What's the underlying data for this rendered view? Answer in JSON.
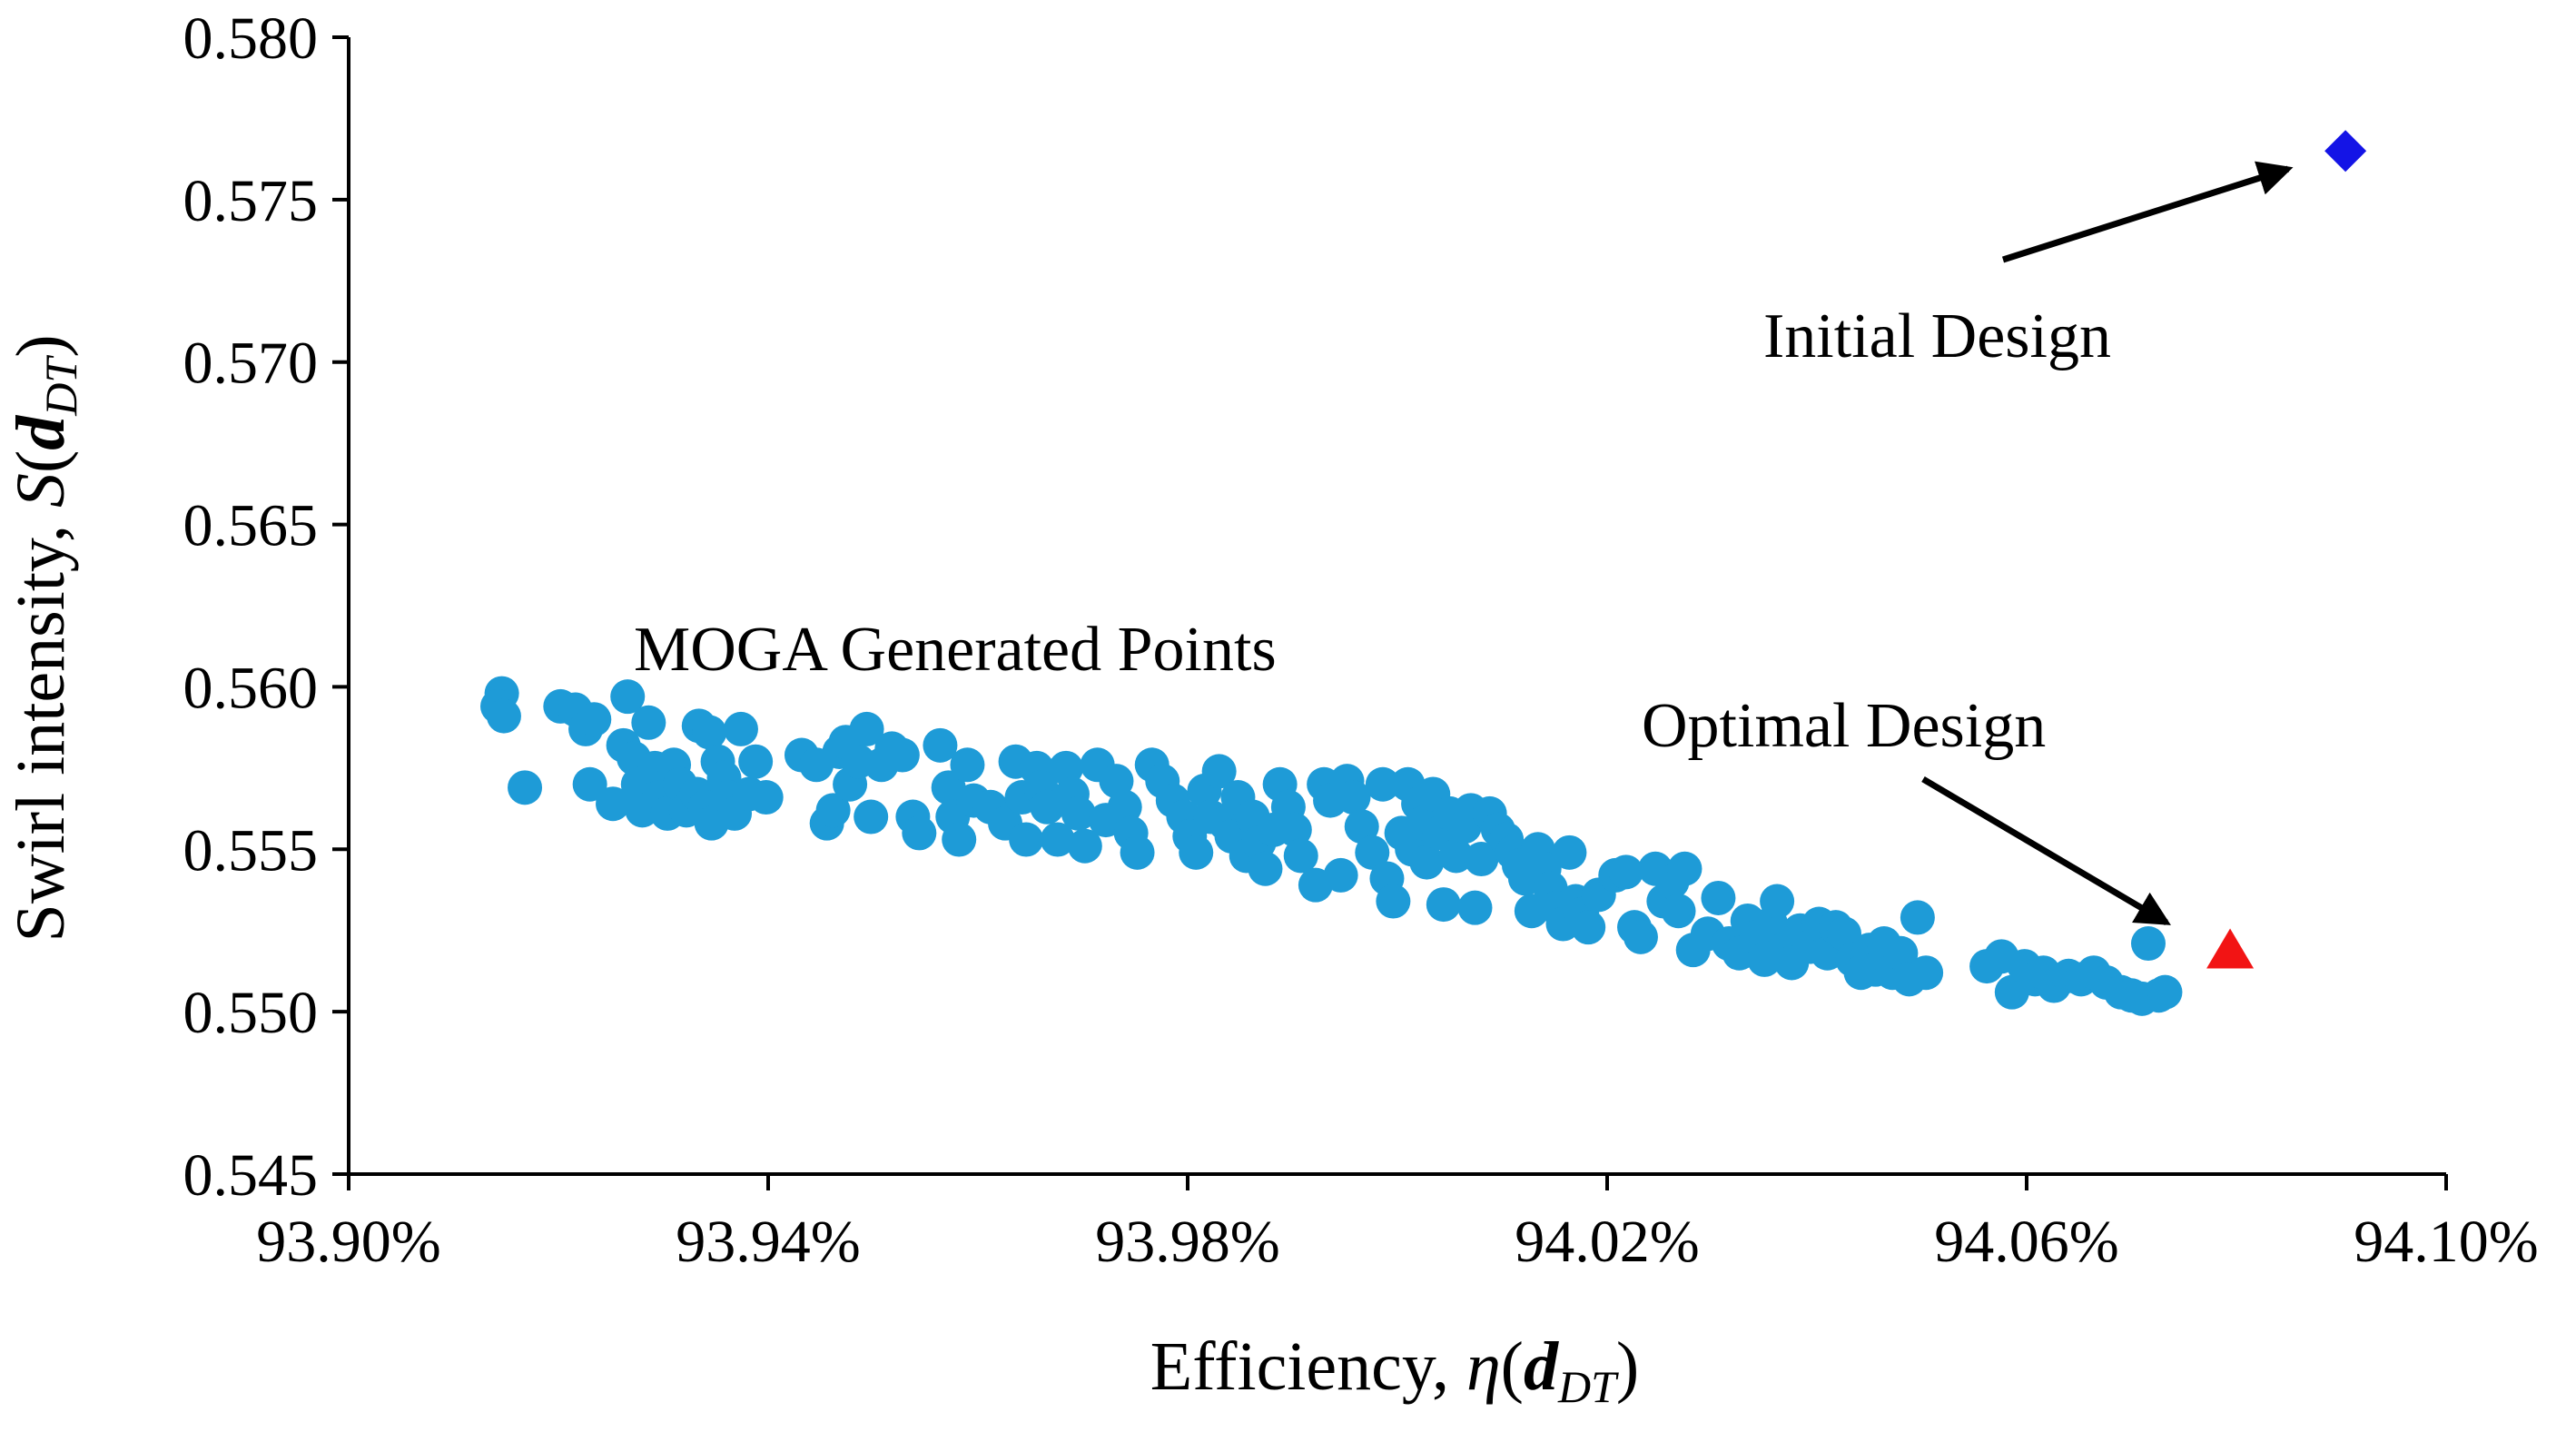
{
  "chart_data": {
    "type": "scatter",
    "title": "",
    "xlabel": {
      "prefix": "Efficiency, ",
      "symbol": "η",
      "open": "(",
      "vector": "d",
      "sub": "DT",
      "close": ")"
    },
    "ylabel": {
      "prefix": "Swirl intensity, ",
      "symbol": "S",
      "open": "(",
      "vector": "d",
      "sub": "DT",
      "close": ")"
    },
    "xlim": [
      93.9,
      94.1
    ],
    "ylim": [
      0.545,
      0.58
    ],
    "x_ticks": [
      93.9,
      93.94,
      93.98,
      94.02,
      94.06,
      94.1
    ],
    "x_tick_labels": [
      "93.90%",
      "93.94%",
      "93.98%",
      "94.02%",
      "94.06%",
      "94.10%"
    ],
    "y_ticks": [
      0.545,
      0.55,
      0.555,
      0.56,
      0.565,
      0.57,
      0.575,
      0.58
    ],
    "y_tick_labels": [
      "0.545",
      "0.550",
      "0.555",
      "0.560",
      "0.565",
      "0.570",
      "0.575",
      "0.580"
    ],
    "grid": false,
    "series": [
      {
        "name": "MOGA Generated Points",
        "marker": "circle",
        "color": "#1E9BD7",
        "points": [
          [
            93.9146,
            0.5598
          ],
          [
            93.9142,
            0.5594
          ],
          [
            93.9148,
            0.5591
          ],
          [
            93.9168,
            0.5569
          ],
          [
            93.9202,
            0.5594
          ],
          [
            93.9216,
            0.5593
          ],
          [
            93.9226,
            0.5587
          ],
          [
            93.9234,
            0.559
          ],
          [
            93.923,
            0.557
          ],
          [
            93.9252,
            0.5564
          ],
          [
            93.9266,
            0.5597
          ],
          [
            93.9262,
            0.5582
          ],
          [
            93.9272,
            0.5578
          ],
          [
            93.9276,
            0.557
          ],
          [
            93.928,
            0.5562
          ],
          [
            93.9286,
            0.5589
          ],
          [
            93.9292,
            0.5575
          ],
          [
            93.9296,
            0.5566
          ],
          [
            93.9304,
            0.5561
          ],
          [
            93.931,
            0.5576
          ],
          [
            93.9316,
            0.557
          ],
          [
            93.9322,
            0.5562
          ],
          [
            93.9334,
            0.5588
          ],
          [
            93.9344,
            0.5586
          ],
          [
            93.9332,
            0.5567
          ],
          [
            93.934,
            0.5563
          ],
          [
            93.9346,
            0.5558
          ],
          [
            93.9352,
            0.5577
          ],
          [
            93.9358,
            0.5572
          ],
          [
            93.9362,
            0.5566
          ],
          [
            93.9368,
            0.5561
          ],
          [
            93.9374,
            0.5587
          ],
          [
            93.9382,
            0.5567
          ],
          [
            93.9388,
            0.5577
          ],
          [
            93.9398,
            0.5566
          ],
          [
            93.9432,
            0.5579
          ],
          [
            93.9446,
            0.5576
          ],
          [
            93.9456,
            0.5558
          ],
          [
            93.9462,
            0.5562
          ],
          [
            93.9468,
            0.558
          ],
          [
            93.9474,
            0.5583
          ],
          [
            93.9478,
            0.557
          ],
          [
            93.9486,
            0.5577
          ],
          [
            93.9494,
            0.5587
          ],
          [
            93.9498,
            0.556
          ],
          [
            93.9508,
            0.5576
          ],
          [
            93.9518,
            0.5581
          ],
          [
            93.9528,
            0.5579
          ],
          [
            93.9538,
            0.556
          ],
          [
            93.9544,
            0.5555
          ],
          [
            93.9564,
            0.5582
          ],
          [
            93.9572,
            0.5569
          ],
          [
            93.9576,
            0.556
          ],
          [
            93.9582,
            0.5553
          ],
          [
            93.959,
            0.5576
          ],
          [
            93.9596,
            0.5565
          ],
          [
            93.9612,
            0.5563
          ],
          [
            93.9626,
            0.5558
          ],
          [
            93.9636,
            0.5577
          ],
          [
            93.9642,
            0.5566
          ],
          [
            93.9646,
            0.5553
          ],
          [
            93.9656,
            0.5575
          ],
          [
            93.966,
            0.5569
          ],
          [
            93.9666,
            0.5563
          ],
          [
            93.9676,
            0.5553
          ],
          [
            93.9684,
            0.5575
          ],
          [
            93.969,
            0.5567
          ],
          [
            93.9696,
            0.5561
          ],
          [
            93.9702,
            0.5551
          ],
          [
            93.9714,
            0.5576
          ],
          [
            93.9722,
            0.5559
          ],
          [
            93.9732,
            0.5571
          ],
          [
            93.974,
            0.5563
          ],
          [
            93.9746,
            0.5555
          ],
          [
            93.9752,
            0.5549
          ],
          [
            93.9766,
            0.5576
          ],
          [
            93.9776,
            0.5571
          ],
          [
            93.9786,
            0.5565
          ],
          [
            93.9796,
            0.556
          ],
          [
            93.9802,
            0.5554
          ],
          [
            93.9808,
            0.5549
          ],
          [
            93.9816,
            0.5568
          ],
          [
            93.9822,
            0.556
          ],
          [
            93.983,
            0.5574
          ],
          [
            93.9836,
            0.5558
          ],
          [
            93.9842,
            0.5554
          ],
          [
            93.9848,
            0.5566
          ],
          [
            93.9856,
            0.5548
          ],
          [
            93.9862,
            0.556
          ],
          [
            93.9868,
            0.5552
          ],
          [
            93.9874,
            0.5544
          ],
          [
            93.9882,
            0.5556
          ],
          [
            93.9888,
            0.557
          ],
          [
            93.9896,
            0.5563
          ],
          [
            93.9902,
            0.5556
          ],
          [
            93.9908,
            0.5548
          ],
          [
            93.9922,
            0.5539
          ],
          [
            93.993,
            0.557
          ],
          [
            93.9936,
            0.5565
          ],
          [
            93.9946,
            0.5542
          ],
          [
            93.9952,
            0.5571
          ],
          [
            93.9958,
            0.5566
          ],
          [
            93.9966,
            0.5557
          ],
          [
            93.9976,
            0.5549
          ],
          [
            93.9986,
            0.557
          ],
          [
            93.999,
            0.5541
          ],
          [
            93.9996,
            0.5534
          ],
          [
            94.0004,
            0.5555
          ],
          [
            94.001,
            0.557
          ],
          [
            94.0014,
            0.555
          ],
          [
            94.002,
            0.5564
          ],
          [
            94.0024,
            0.5558
          ],
          [
            94.0028,
            0.5546
          ],
          [
            94.0034,
            0.5567
          ],
          [
            94.004,
            0.5555
          ],
          [
            94.0044,
            0.5533
          ],
          [
            94.005,
            0.5561
          ],
          [
            94.0056,
            0.5548
          ],
          [
            94.0064,
            0.5557
          ],
          [
            94.007,
            0.5562
          ],
          [
            94.0074,
            0.5532
          ],
          [
            94.008,
            0.5547
          ],
          [
            94.0088,
            0.5561
          ],
          [
            94.0096,
            0.5556
          ],
          [
            94.0104,
            0.5553
          ],
          [
            94.011,
            0.5549
          ],
          [
            94.0116,
            0.5545
          ],
          [
            94.0122,
            0.5541
          ],
          [
            94.0128,
            0.5531
          ],
          [
            94.0134,
            0.555
          ],
          [
            94.014,
            0.5544
          ],
          [
            94.0146,
            0.5538
          ],
          [
            94.0152,
            0.5532
          ],
          [
            94.0158,
            0.5527
          ],
          [
            94.0164,
            0.5549
          ],
          [
            94.017,
            0.5534
          ],
          [
            94.0176,
            0.553
          ],
          [
            94.0182,
            0.5526
          ],
          [
            94.0192,
            0.5536
          ],
          [
            94.0208,
            0.5542
          ],
          [
            94.0218,
            0.5543
          ],
          [
            94.0226,
            0.5526
          ],
          [
            94.0232,
            0.5523
          ],
          [
            94.0246,
            0.5544
          ],
          [
            94.0254,
            0.5534
          ],
          [
            94.0262,
            0.554
          ],
          [
            94.0268,
            0.5531
          ],
          [
            94.0274,
            0.5544
          ],
          [
            94.0282,
            0.5519
          ],
          [
            94.0296,
            0.5524
          ],
          [
            94.0306,
            0.5535
          ],
          [
            94.0316,
            0.5521
          ],
          [
            94.0326,
            0.5518
          ],
          [
            94.0334,
            0.5528
          ],
          [
            94.0342,
            0.5523
          ],
          [
            94.035,
            0.5516
          ],
          [
            94.0356,
            0.5527
          ],
          [
            94.0362,
            0.5534
          ],
          [
            94.0368,
            0.5519
          ],
          [
            94.0376,
            0.5515
          ],
          [
            94.0384,
            0.5525
          ],
          [
            94.0394,
            0.552
          ],
          [
            94.0402,
            0.5527
          ],
          [
            94.041,
            0.5518
          ],
          [
            94.0418,
            0.5526
          ],
          [
            94.0426,
            0.5524
          ],
          [
            94.0434,
            0.5516
          ],
          [
            94.0442,
            0.5512
          ],
          [
            94.045,
            0.5519
          ],
          [
            94.0456,
            0.5513
          ],
          [
            94.0464,
            0.5521
          ],
          [
            94.0472,
            0.5512
          ],
          [
            94.048,
            0.5518
          ],
          [
            94.0488,
            0.551
          ],
          [
            94.0496,
            0.5529
          ],
          [
            94.0504,
            0.5512
          ],
          [
            94.0562,
            0.5514
          ],
          [
            94.0576,
            0.5517
          ],
          [
            94.0586,
            0.5506
          ],
          [
            94.0598,
            0.5514
          ],
          [
            94.0608,
            0.551
          ],
          [
            94.0616,
            0.5512
          ],
          [
            94.0626,
            0.5508
          ],
          [
            94.064,
            0.5511
          ],
          [
            94.0652,
            0.551
          ],
          [
            94.0664,
            0.5512
          ],
          [
            94.0676,
            0.5509
          ],
          [
            94.069,
            0.5506
          ],
          [
            94.07,
            0.5505
          ],
          [
            94.071,
            0.5504
          ],
          [
            94.0716,
            0.5521
          ],
          [
            94.0726,
            0.5505
          ],
          [
            94.0732,
            0.5506
          ]
        ]
      },
      {
        "name": "Initial Design",
        "marker": "diamond",
        "color": "#1414E6",
        "points": [
          [
            94.0904,
            0.5765
          ]
        ]
      },
      {
        "name": "Optimal Design",
        "marker": "triangle",
        "color": "#F21414",
        "points": [
          [
            94.0794,
            0.5518
          ]
        ]
      }
    ],
    "annotations": [
      {
        "text": "MOGA Generated Points",
        "target_series": "MOGA Generated Points",
        "arrow": false
      },
      {
        "text": "Initial Design",
        "target_series": "Initial Design",
        "arrow": true
      },
      {
        "text": "Optimal Design",
        "target_series": "Optimal Design",
        "arrow": true
      }
    ]
  }
}
